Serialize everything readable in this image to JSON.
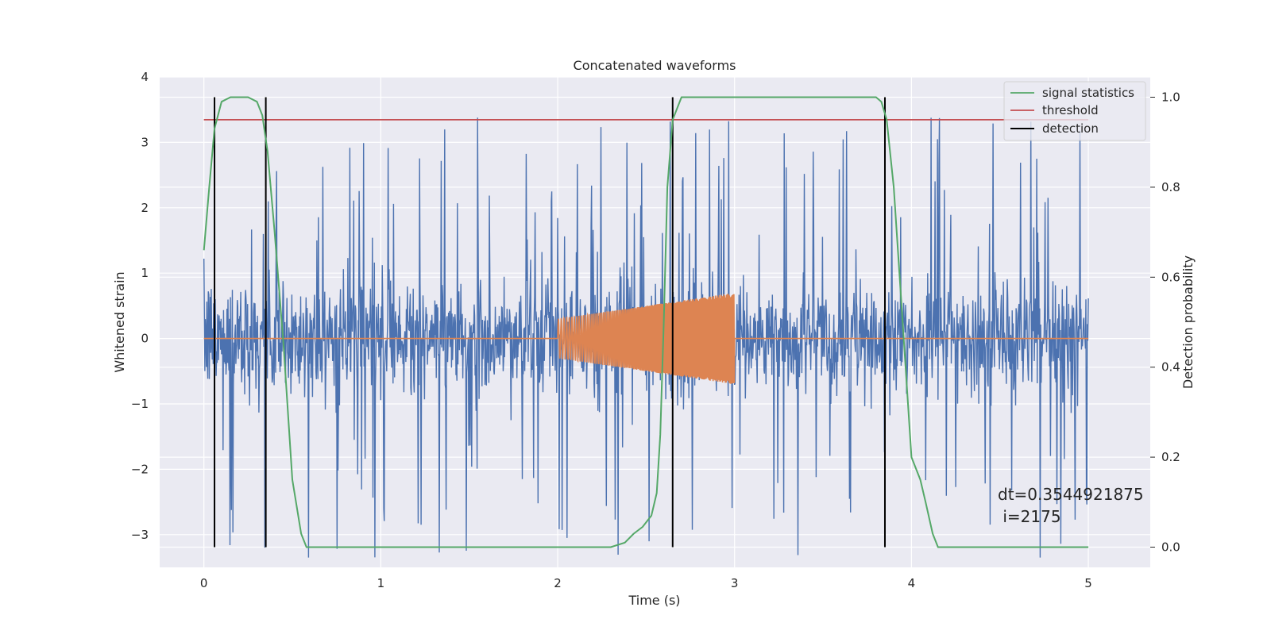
{
  "chart_data": {
    "type": "line",
    "title": "Concatenated waveforms",
    "xlabel": "Time (s)",
    "ylabel_left": "Whitened strain",
    "ylabel_right": "Detection probability",
    "xlim": [
      -0.25,
      5.35
    ],
    "ylim_left": [
      -3.5,
      4.0
    ],
    "ylim_right": [
      -0.045,
      1.045
    ],
    "x_ticks": [
      0,
      1,
      2,
      3,
      4,
      5
    ],
    "x_tick_labels": [
      "0",
      "1",
      "2",
      "3",
      "4",
      "5"
    ],
    "y_left_ticks": [
      -3,
      -2,
      -1,
      0,
      1,
      2,
      3,
      4
    ],
    "y_left_tick_labels": [
      "−3",
      "−2",
      "−1",
      "0",
      "1",
      "2",
      "3",
      "4"
    ],
    "y_right_ticks": [
      0.0,
      0.2,
      0.4,
      0.6,
      0.8,
      1.0
    ],
    "y_right_tick_labels": [
      "0.0",
      "0.2",
      "0.4",
      "0.6",
      "0.8",
      "1.0"
    ],
    "grid": true,
    "legend_position": "top-right",
    "colors": {
      "background": "#eaeaf2",
      "grid": "#ffffff",
      "strain": "#4c72b0",
      "template": "#dd8452",
      "signal_statistics": "#55a868",
      "threshold": "#c44e52",
      "detection": "#000000"
    },
    "series": [
      {
        "name": "signal statistics",
        "axis": "right",
        "x": [
          0.0,
          0.03,
          0.06,
          0.1,
          0.15,
          0.25,
          0.3,
          0.33,
          0.36,
          0.4,
          0.45,
          0.5,
          0.55,
          0.58,
          0.65,
          1.0,
          2.0,
          2.3,
          2.38,
          2.43,
          2.48,
          2.53,
          2.56,
          2.58,
          2.6,
          2.62,
          2.65,
          2.7,
          3.0,
          3.8,
          3.83,
          3.86,
          3.9,
          3.95,
          4.0,
          4.05,
          4.08,
          4.12,
          4.15,
          5.0
        ],
        "y": [
          0.66,
          0.8,
          0.93,
          0.99,
          1.0,
          1.0,
          0.99,
          0.96,
          0.88,
          0.7,
          0.45,
          0.15,
          0.03,
          0.0,
          0.0,
          0.0,
          0.0,
          0.0,
          0.01,
          0.03,
          0.045,
          0.07,
          0.12,
          0.25,
          0.5,
          0.8,
          0.95,
          1.0,
          1.0,
          1.0,
          0.99,
          0.95,
          0.8,
          0.5,
          0.2,
          0.15,
          0.1,
          0.03,
          0.0,
          0.0
        ]
      },
      {
        "name": "threshold",
        "axis": "right",
        "x": [
          0.0,
          5.0
        ],
        "y": [
          0.95,
          0.95
        ]
      },
      {
        "name": "detection",
        "axis": "right",
        "x_positions": [
          0.06,
          0.35,
          2.65,
          3.85
        ],
        "y_range": [
          0.0,
          1.0
        ]
      },
      {
        "axis": "left",
        "description_values": {
          "x_range": [
            0.0,
            5.0
          ],
          "typical_amplitude": 0.8,
          "spike_range": [
            -3.35,
            3.7
          ]
        }
      },
      {
        "axis": "left",
        "x_range": [
          2.0,
          3.0
        ],
        "amplitude_start": 0.3,
        "amplitude_end": 0.7,
        "baseline_outside": 0.0
      }
    ],
    "annotation": {
      "line1": "dt=0.3544921875",
      "line2": " i=2175"
    },
    "legend": [
      "signal statistics",
      "threshold",
      "detection"
    ]
  }
}
